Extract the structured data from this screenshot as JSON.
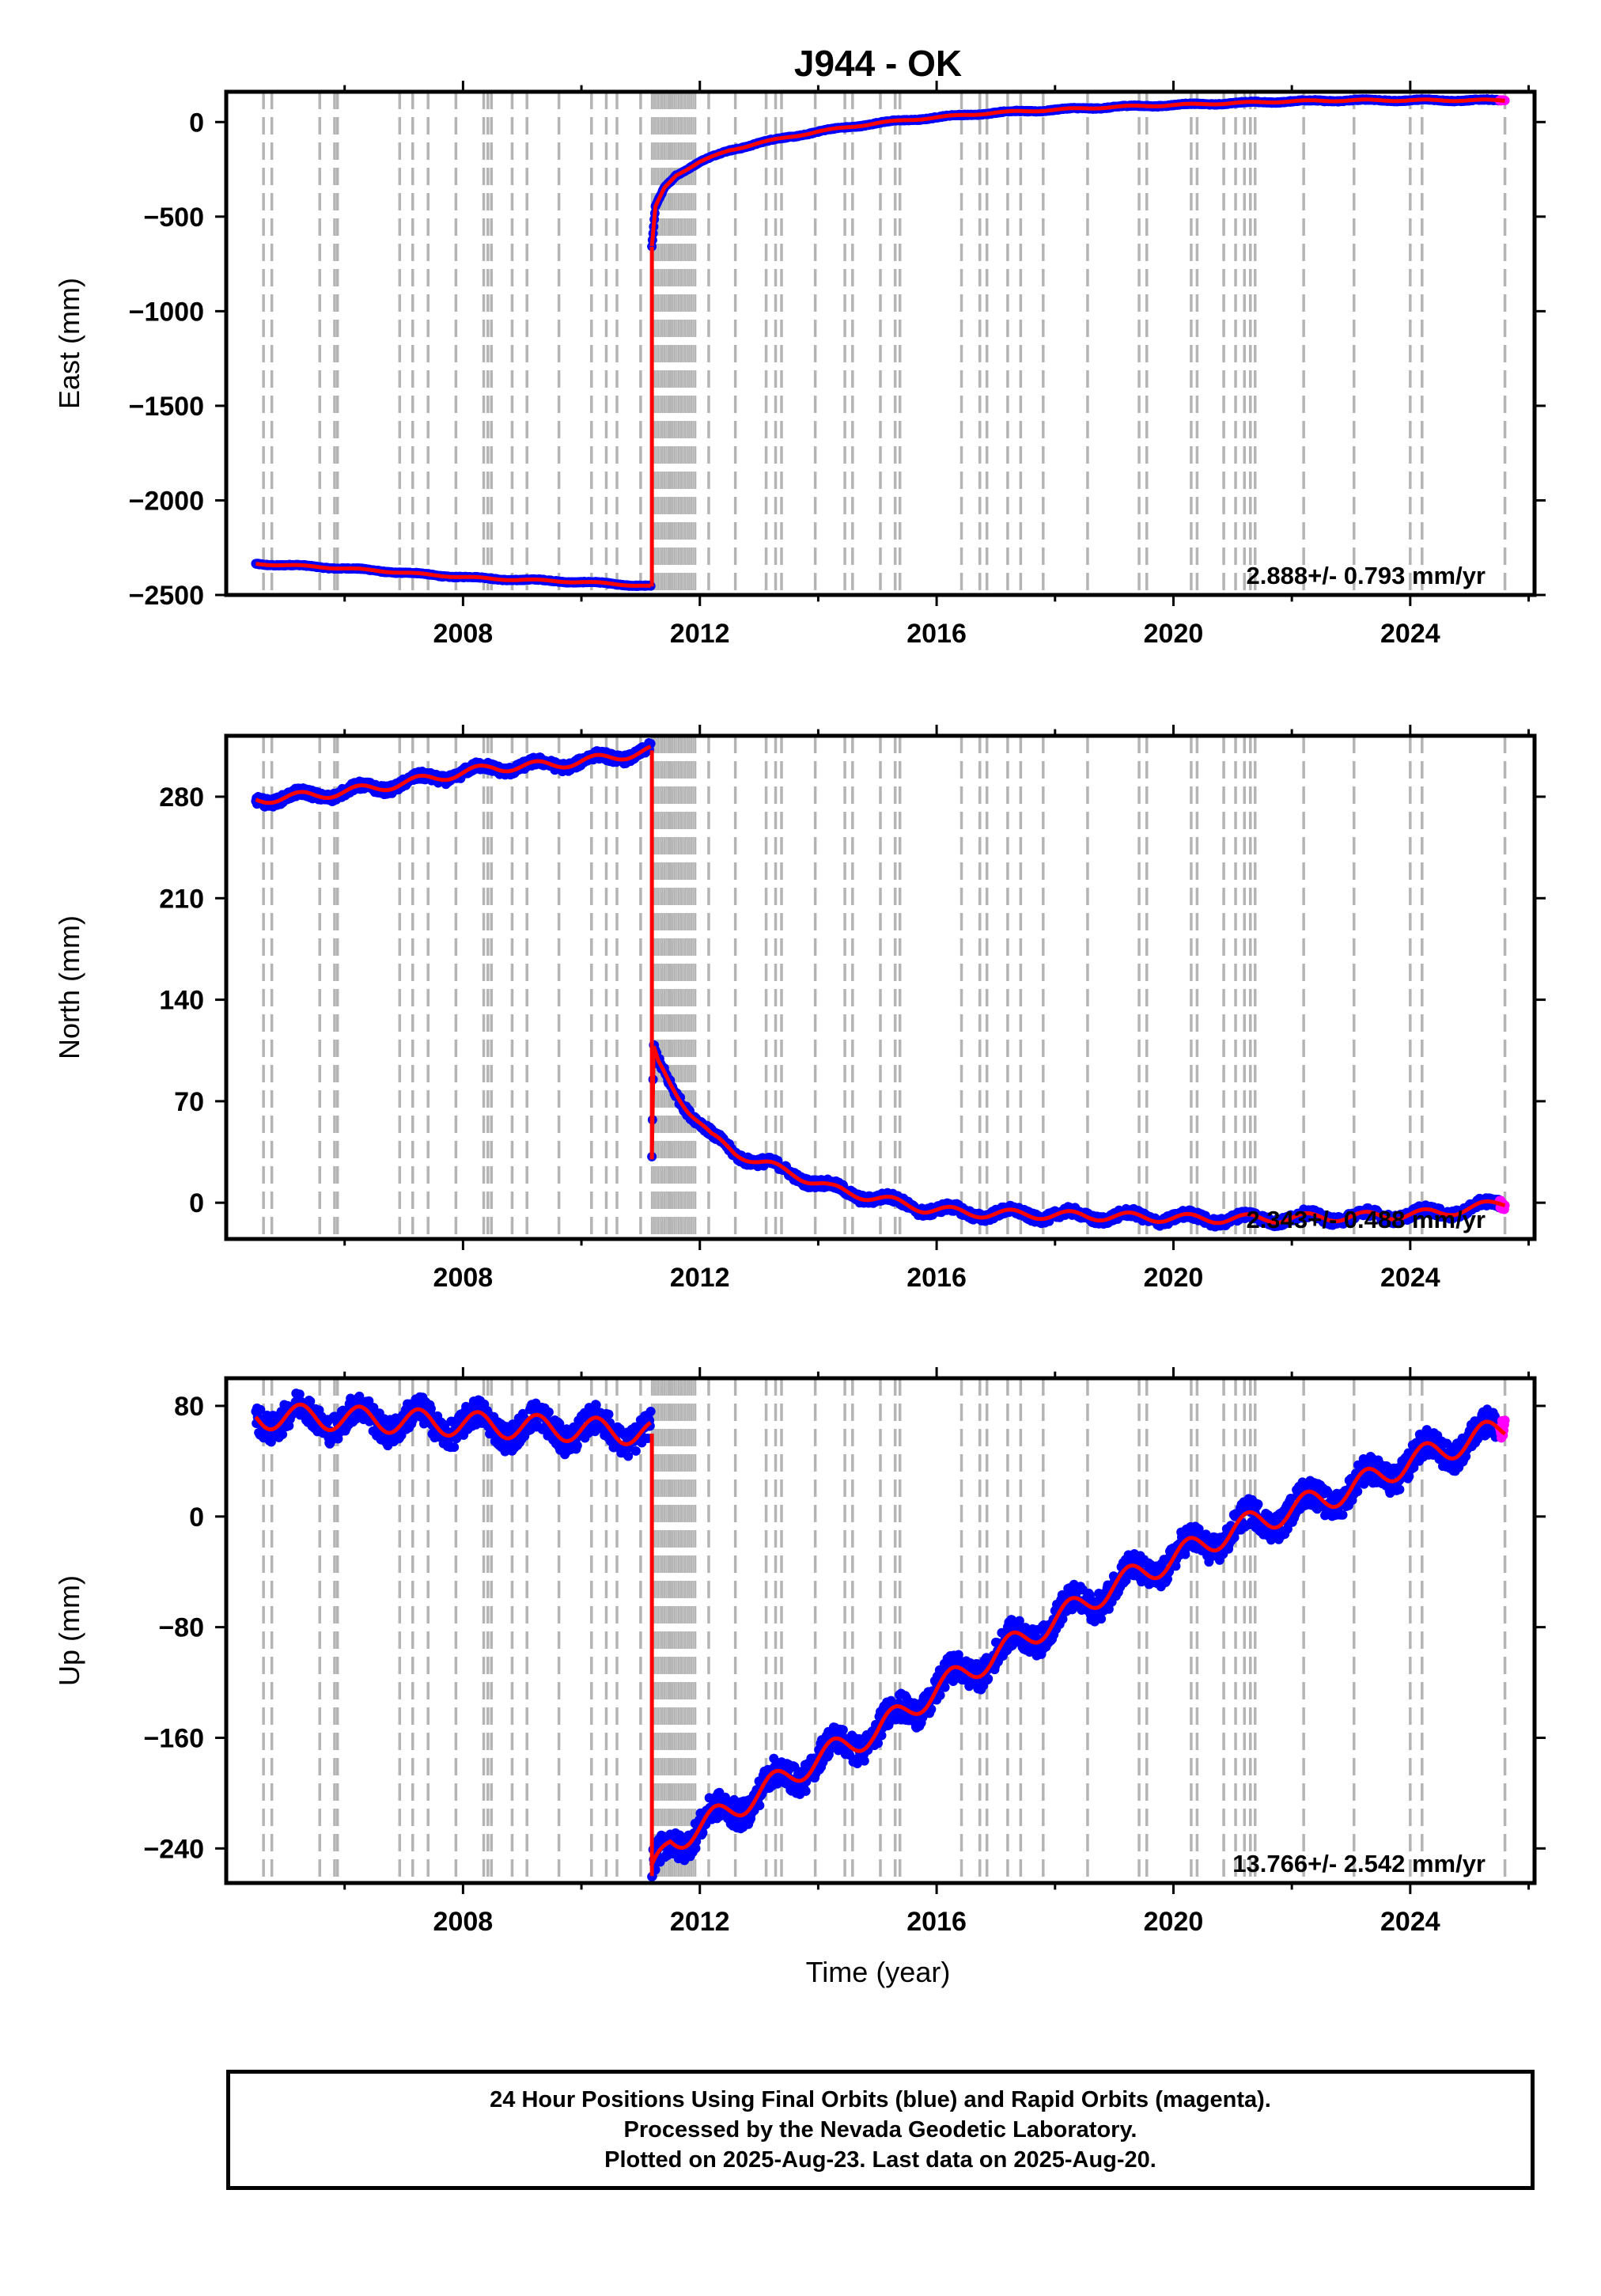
{
  "title": "J944 - OK",
  "x_axis": {
    "label": "Time (year)",
    "ticks": [
      "2008",
      "2012",
      "2016",
      "2020",
      "2024"
    ],
    "range": [
      2004.0,
      2026.1
    ]
  },
  "colors": {
    "final_orbits": "#0000ff",
    "rapid_orbits": "#ff00ff",
    "model_fit": "#ff0000",
    "event_lines": "#b4b4b4"
  },
  "footer": {
    "line1": "24 Hour Positions Using Final Orbits (blue) and Rapid Orbits (magenta).",
    "line2": "Processed by the Nevada Geodetic Laboratory.",
    "line3": "Plotted on 2025-Aug-23. Last data on 2025-Aug-20."
  },
  "event_lines": [
    2004.63,
    2004.77,
    2005.58,
    2005.83,
    2005.88,
    2006.93,
    2007.15,
    2007.41,
    2007.88,
    2008.35,
    2008.42,
    2008.48,
    2008.83,
    2009.08,
    2009.62,
    2010.17,
    2010.42,
    2010.6,
    2011.0,
    2011.5,
    2012.15,
    2012.6,
    2013.12,
    2013.28,
    2013.38,
    2013.95,
    2014.45,
    2014.58,
    2015.05,
    2015.3,
    2015.38,
    2016.42,
    2016.73,
    2016.85,
    2017.2,
    2017.42,
    2017.8,
    2018.55,
    2019.42,
    2019.55,
    2020.3,
    2020.4,
    2020.85,
    2021.05,
    2021.2,
    2021.3,
    2021.38,
    2022.2,
    2023.05,
    2024.0,
    2024.2,
    2025.6
  ],
  "aftershock_band": [
    2011.19,
    2011.95
  ],
  "chart_data": [
    {
      "type": "scatter",
      "component": "east",
      "ylabel": "East (mm)",
      "yticks": [
        "0",
        "−500",
        "−1000",
        "−1500",
        "−2000",
        "−2500"
      ],
      "ytick_values": [
        0,
        -500,
        -1000,
        -1500,
        -2000,
        -2500
      ],
      "ylim": [
        -2500,
        160
      ],
      "rate_label": "2.888+/- 0.793 mm/yr",
      "series": [
        {
          "x": [
            2004.5,
            2005.5,
            2006.5,
            2007.5,
            2008.5,
            2009.5,
            2010.5,
            2011.17
          ],
          "values": [
            -2335,
            -2350,
            -2370,
            -2395,
            -2415,
            -2425,
            -2440,
            -2455
          ]
        },
        {
          "x": [
            2011.19,
            2011.25,
            2011.4,
            2011.6,
            2012.0,
            2012.5,
            2013.0,
            2014.0,
            2015.0,
            2016.0,
            2017.0,
            2018.0,
            2019.0,
            2020.0,
            2021.0,
            2022.0,
            2023.0,
            2024.0,
            2025.6
          ],
          "values": [
            -660,
            -450,
            -350,
            -280,
            -210,
            -150,
            -110,
            -50,
            -5,
            25,
            50,
            65,
            80,
            90,
            100,
            110,
            115,
            115,
            115
          ]
        }
      ]
    },
    {
      "type": "scatter",
      "component": "north",
      "ylabel": "North (mm)",
      "yticks": [
        "280",
        "210",
        "140",
        "70",
        "0"
      ],
      "ytick_values": [
        280,
        210,
        140,
        70,
        0
      ],
      "ylim": [
        -25,
        322
      ],
      "rate_label": "2.343+/- 0.488 mm/yr",
      "series": [
        {
          "x": [
            2004.5,
            2005.5,
            2006.5,
            2007.5,
            2008.5,
            2009.5,
            2010.5,
            2011.17
          ],
          "values": [
            278,
            281,
            286,
            293,
            300,
            302,
            307,
            312
          ]
        },
        {
          "x": [
            2011.19,
            2011.22,
            2011.3,
            2011.5,
            2011.8,
            2012.2,
            2012.6,
            2013.0,
            2013.6,
            2014.2,
            2015.0,
            2015.8,
            2016.5,
            2017.5,
            2018.5,
            2019.5,
            2020.5,
            2021.5,
            2022.5,
            2023.5,
            2024.5,
            2025.6
          ],
          "values": [
            30,
            105,
            95,
            82,
            65,
            45,
            35,
            28,
            20,
            10,
            3,
            -4,
            -7,
            -8,
            -9,
            -10,
            -11,
            -11,
            -10,
            -9,
            -7,
            0
          ]
        }
      ]
    },
    {
      "type": "scatter",
      "component": "up",
      "ylabel": "Up (mm)",
      "yticks": [
        "80",
        "0",
        "−80",
        "−160",
        "−240"
      ],
      "ytick_values": [
        80,
        0,
        -80,
        -160,
        -240
      ],
      "ylim": [
        -265,
        100
      ],
      "rate_label": "13.766+/- 2.542 mm/yr",
      "series": [
        {
          "x": [
            2004.5,
            2005.5,
            2006.5,
            2007.5,
            2008.5,
            2009.5,
            2010.5,
            2011.17
          ],
          "values": [
            72,
            72,
            70,
            68,
            66,
            64,
            62,
            60
          ]
        },
        {
          "x": [
            2011.19,
            2011.5,
            2012.0,
            2013.0,
            2014.0,
            2015.0,
            2016.0,
            2017.0,
            2018.0,
            2019.0,
            2020.0,
            2021.0,
            2022.0,
            2023.0,
            2024.0,
            2025.0,
            2025.6
          ],
          "values": [
            -260,
            -235,
            -225,
            -200,
            -175,
            -155,
            -125,
            -100,
            -75,
            -50,
            -30,
            -10,
            5,
            20,
            40,
            55,
            65
          ]
        }
      ]
    }
  ]
}
